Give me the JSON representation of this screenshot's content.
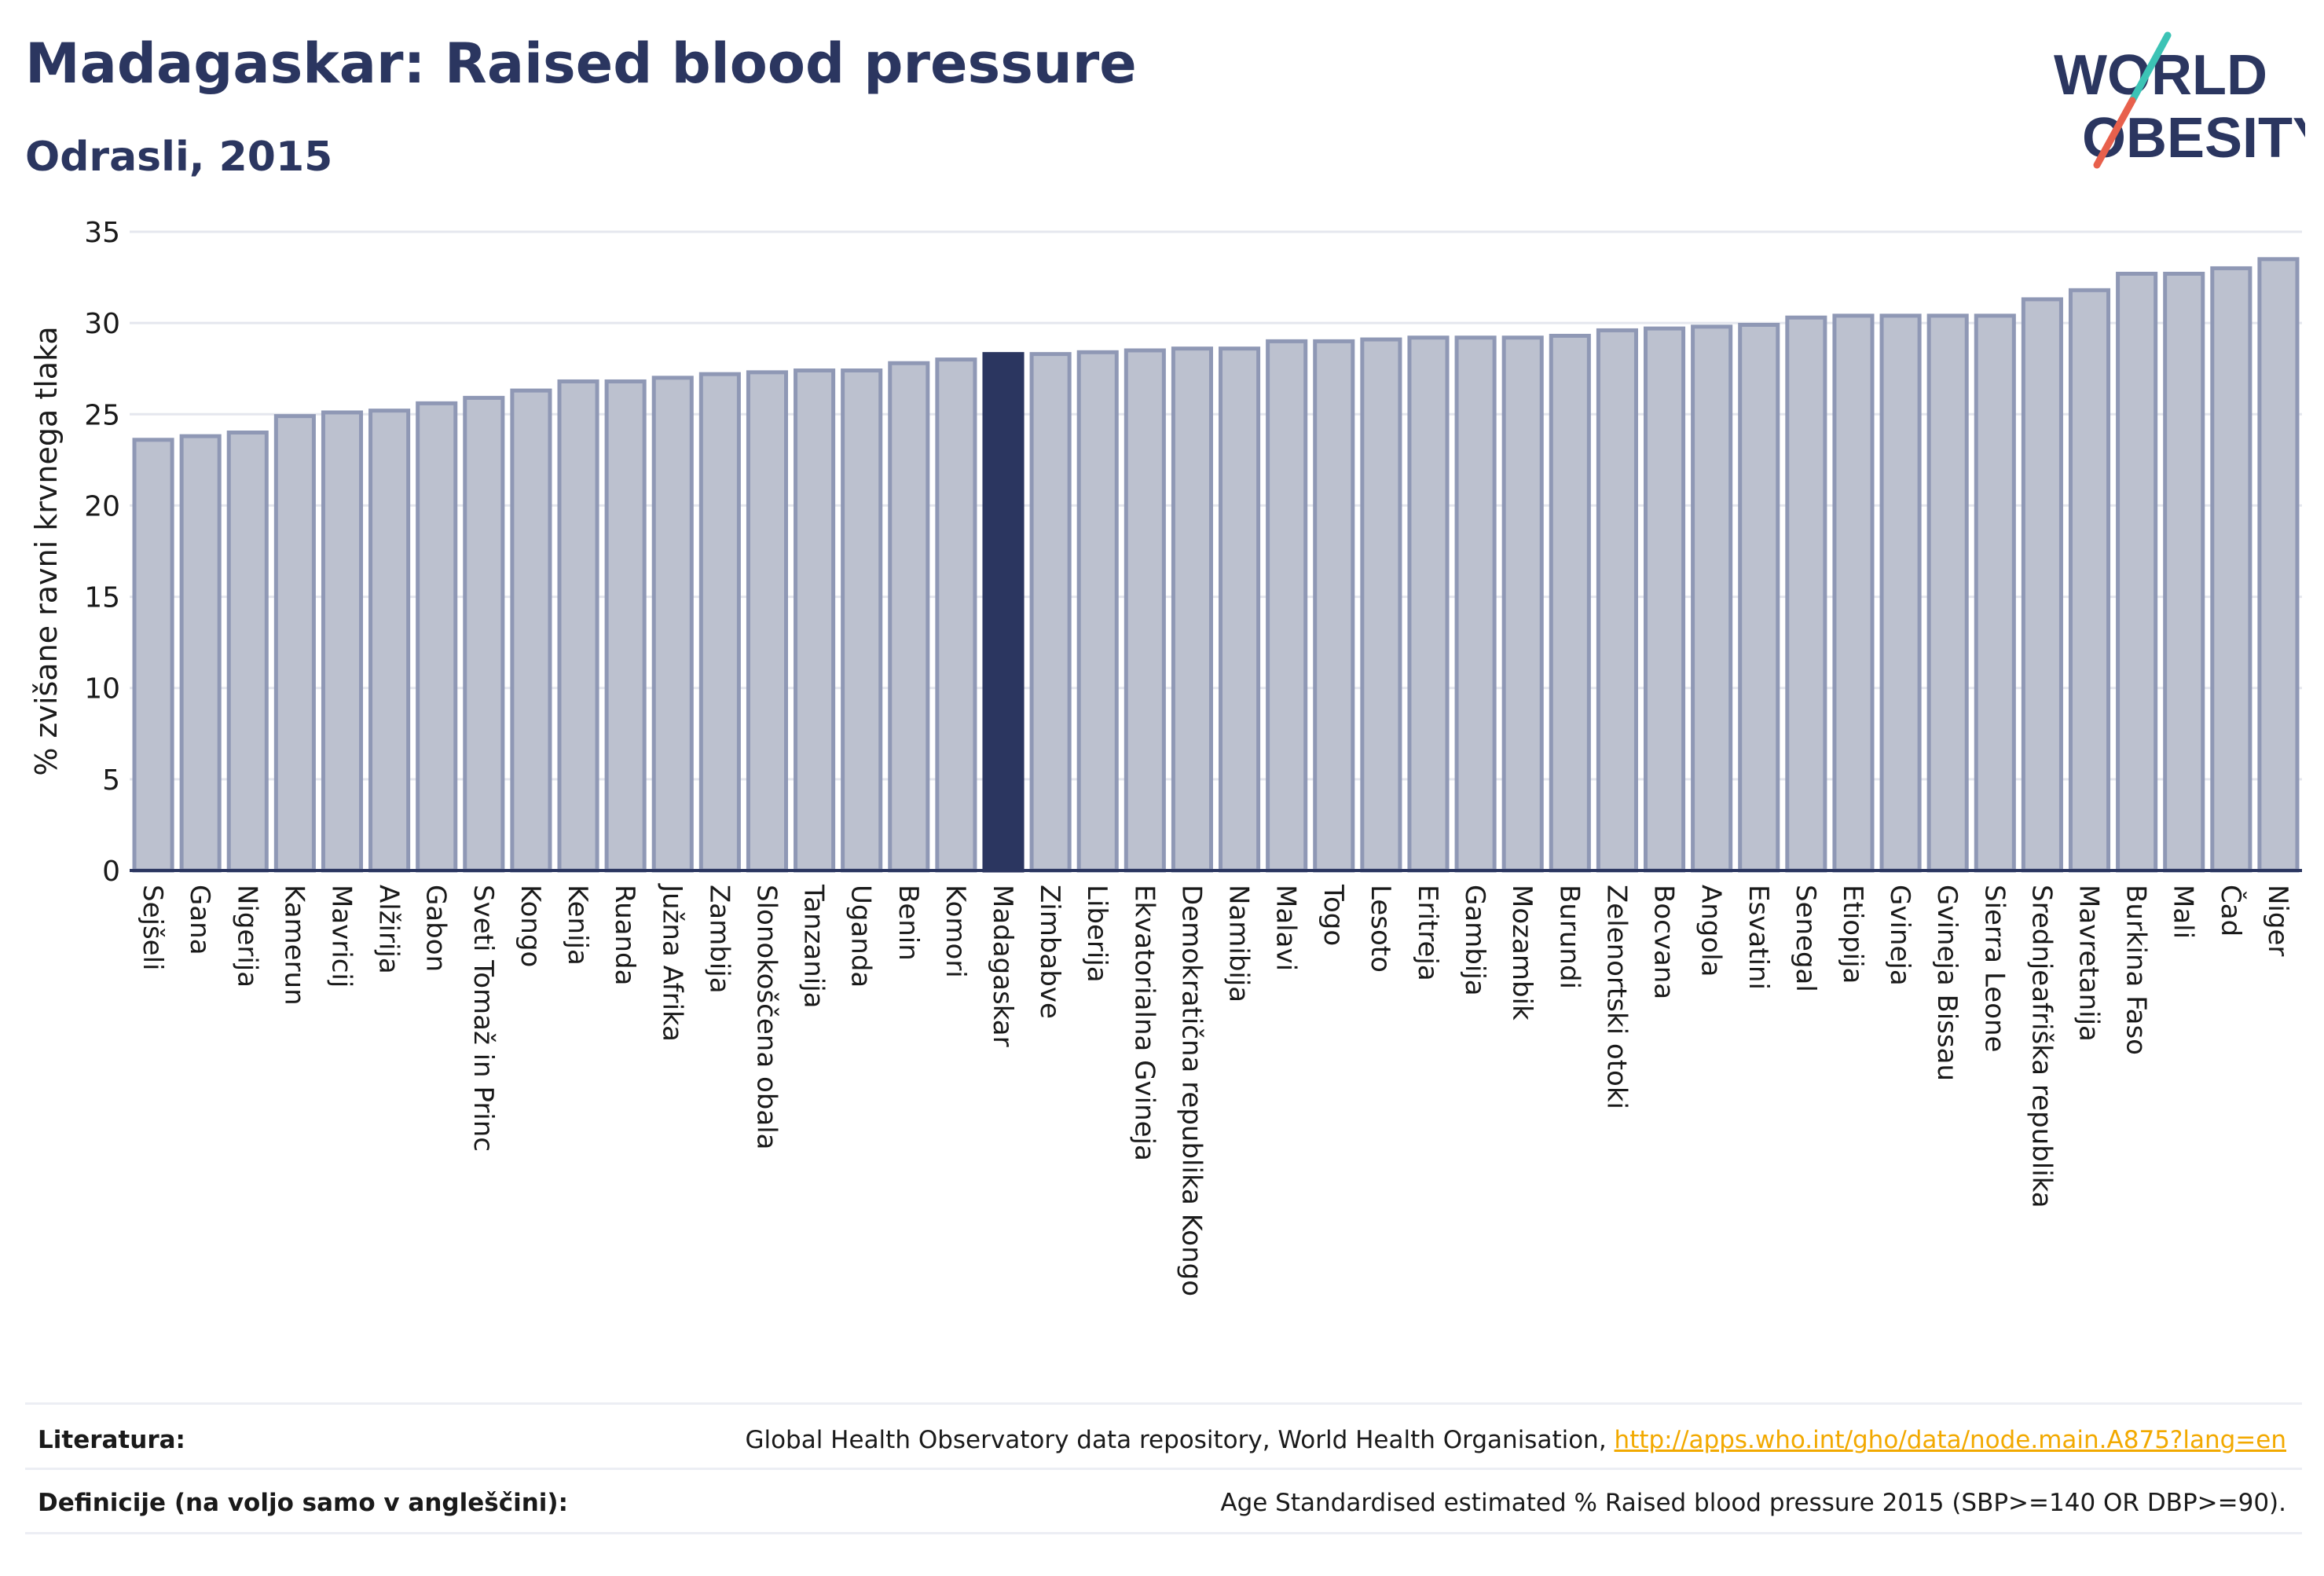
{
  "header": {
    "title": "Madagaskar: Raised blood pressure",
    "subtitle": "Odrasli, 2015"
  },
  "logo": {
    "line1": "WORLD",
    "line2": "OBESITY",
    "text_color": "#2b3660",
    "slash_colors": [
      "#3cc3b5",
      "#e8604c"
    ]
  },
  "colors": {
    "bar_fill": "#bcc1cf",
    "bar_stroke": "#8f98b5",
    "highlight": "#2b3660",
    "grid": "#e5e7ee",
    "axis_text": "#1a1a1a"
  },
  "chart_data": {
    "type": "bar",
    "ylabel": "% zvišane ravni krvnega tlaka",
    "xlabel": "",
    "ylim": [
      0,
      35
    ],
    "yticks": [
      0,
      5,
      10,
      15,
      20,
      25,
      30,
      35
    ],
    "grid": true,
    "highlight": "Madagaskar",
    "categories": [
      "Sejšeli",
      "Gana",
      "Nigerija",
      "Kamerun",
      "Mavricij",
      "Alžirija",
      "Gabon",
      "Sveti Tomaž in Princ",
      "Kongo",
      "Kenija",
      "Ruanda",
      "Južna Afrika",
      "Zambija",
      "Slonokoščena obala",
      "Tanzanija",
      "Uganda",
      "Benin",
      "Komori",
      "Madagaskar",
      "Zimbabve",
      "Liberija",
      "Ekvatorialna Gvineja",
      "Demokratična republika Kongo",
      "Namibija",
      "Malavi",
      "Togo",
      "Lesoto",
      "Eritreja",
      "Gambija",
      "Mozambik",
      "Burundi",
      "Zelenortski otoki",
      "Bocvana",
      "Angola",
      "Esvatini",
      "Senegal",
      "Etiopija",
      "Gvineja",
      "Gvineja Bissau",
      "Sierra Leone",
      "Srednjeafriška republika",
      "Mavretanija",
      "Burkina Faso",
      "Mali",
      "Čad",
      "Niger"
    ],
    "values": [
      23.6,
      23.8,
      24.0,
      24.9,
      25.1,
      25.2,
      25.6,
      25.9,
      26.3,
      26.8,
      26.8,
      27.0,
      27.2,
      27.3,
      27.4,
      27.4,
      27.8,
      28.0,
      28.3,
      28.3,
      28.4,
      28.5,
      28.6,
      28.6,
      29.0,
      29.0,
      29.1,
      29.2,
      29.2,
      29.2,
      29.3,
      29.6,
      29.7,
      29.8,
      29.9,
      30.3,
      30.4,
      30.4,
      30.4,
      30.4,
      31.3,
      31.8,
      32.7,
      32.7,
      33.0,
      33.5
    ]
  },
  "footer": {
    "literature_label": "Literatura:",
    "literature_text": "Global Health Observatory data repository, World Health Organisation, ",
    "literature_link": "http://apps.who.int/gho/data/node.main.A875?lang=en",
    "definitions_label": "Definicije (na voljo samo v angleščini):",
    "definitions_text": "Age Standardised estimated % Raised blood pressure 2015 (SBP>=140 OR DBP>=90)."
  }
}
